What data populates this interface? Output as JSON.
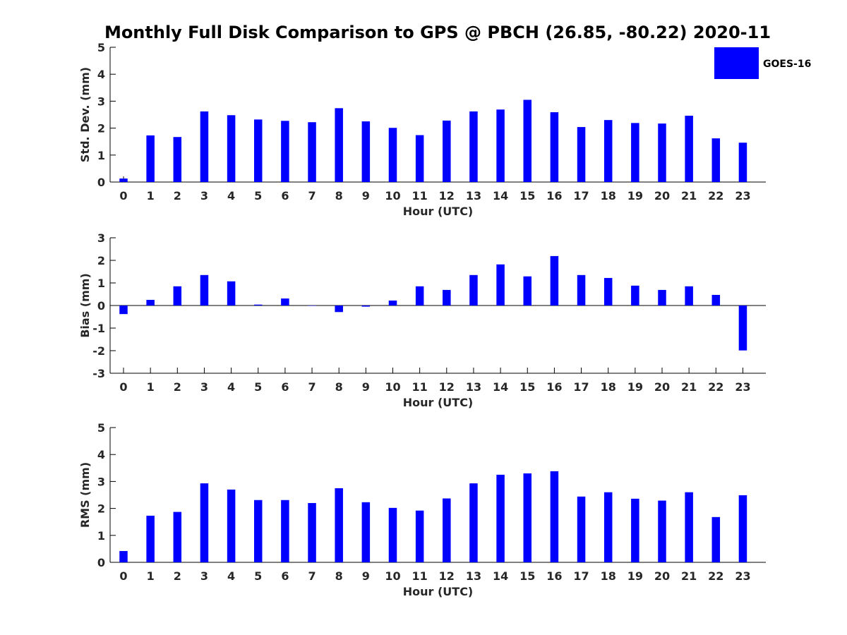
{
  "title": "Monthly Full Disk Comparison to GPS @ PBCH (26.85, -80.22) 2020-11",
  "legend": {
    "label": "GOES-16",
    "color": "#0000ff",
    "placement": "top-right"
  },
  "chart_data": [
    {
      "type": "bar",
      "ylabel": "Std. Dev. (mm)",
      "xlabel": "Hour (UTC)",
      "ylim": [
        0,
        5
      ],
      "yticks": [
        0,
        1,
        2,
        3,
        4,
        5
      ],
      "x": [
        0,
        1,
        2,
        3,
        4,
        5,
        6,
        7,
        8,
        9,
        10,
        11,
        12,
        13,
        14,
        15,
        16,
        17,
        18,
        19,
        20,
        21,
        22,
        23
      ],
      "series": [
        {
          "name": "GOES-16",
          "color": "#0000ff",
          "values": [
            0.13,
            1.73,
            1.67,
            2.62,
            2.48,
            2.32,
            2.27,
            2.22,
            2.74,
            2.25,
            2.01,
            1.74,
            2.28,
            2.62,
            2.69,
            3.05,
            2.59,
            2.04,
            2.3,
            2.19,
            2.17,
            2.46,
            1.62,
            1.46
          ]
        }
      ]
    },
    {
      "type": "bar",
      "ylabel": "Bias (mm)",
      "xlabel": "Hour (UTC)",
      "ylim": [
        -3,
        3
      ],
      "yticks": [
        -3,
        -2,
        -1,
        0,
        1,
        2,
        3
      ],
      "x": [
        0,
        1,
        2,
        3,
        4,
        5,
        6,
        7,
        8,
        9,
        10,
        11,
        12,
        13,
        14,
        15,
        16,
        17,
        18,
        19,
        20,
        21,
        22,
        23
      ],
      "series": [
        {
          "name": "GOES-16",
          "color": "#0000ff",
          "values": [
            -0.38,
            0.25,
            0.85,
            1.35,
            1.07,
            0.04,
            0.31,
            0.0,
            -0.29,
            -0.05,
            0.22,
            0.85,
            0.69,
            1.35,
            1.82,
            1.29,
            2.19,
            1.35,
            1.22,
            0.88,
            0.69,
            0.85,
            0.47,
            -1.99
          ]
        }
      ]
    },
    {
      "type": "bar",
      "ylabel": "RMS (mm)",
      "xlabel": "Hour (UTC)",
      "ylim": [
        0,
        5
      ],
      "yticks": [
        0,
        1,
        2,
        3,
        4,
        5
      ],
      "x": [
        0,
        1,
        2,
        3,
        4,
        5,
        6,
        7,
        8,
        9,
        10,
        11,
        12,
        13,
        14,
        15,
        16,
        17,
        18,
        19,
        20,
        21,
        22,
        23
      ],
      "series": [
        {
          "name": "GOES-16",
          "color": "#0000ff",
          "values": [
            0.42,
            1.73,
            1.87,
            2.93,
            2.7,
            2.31,
            2.31,
            2.2,
            2.75,
            2.23,
            2.02,
            1.92,
            2.37,
            2.93,
            3.25,
            3.3,
            3.38,
            2.44,
            2.6,
            2.36,
            2.29,
            2.6,
            1.68,
            2.49
          ]
        }
      ]
    }
  ]
}
